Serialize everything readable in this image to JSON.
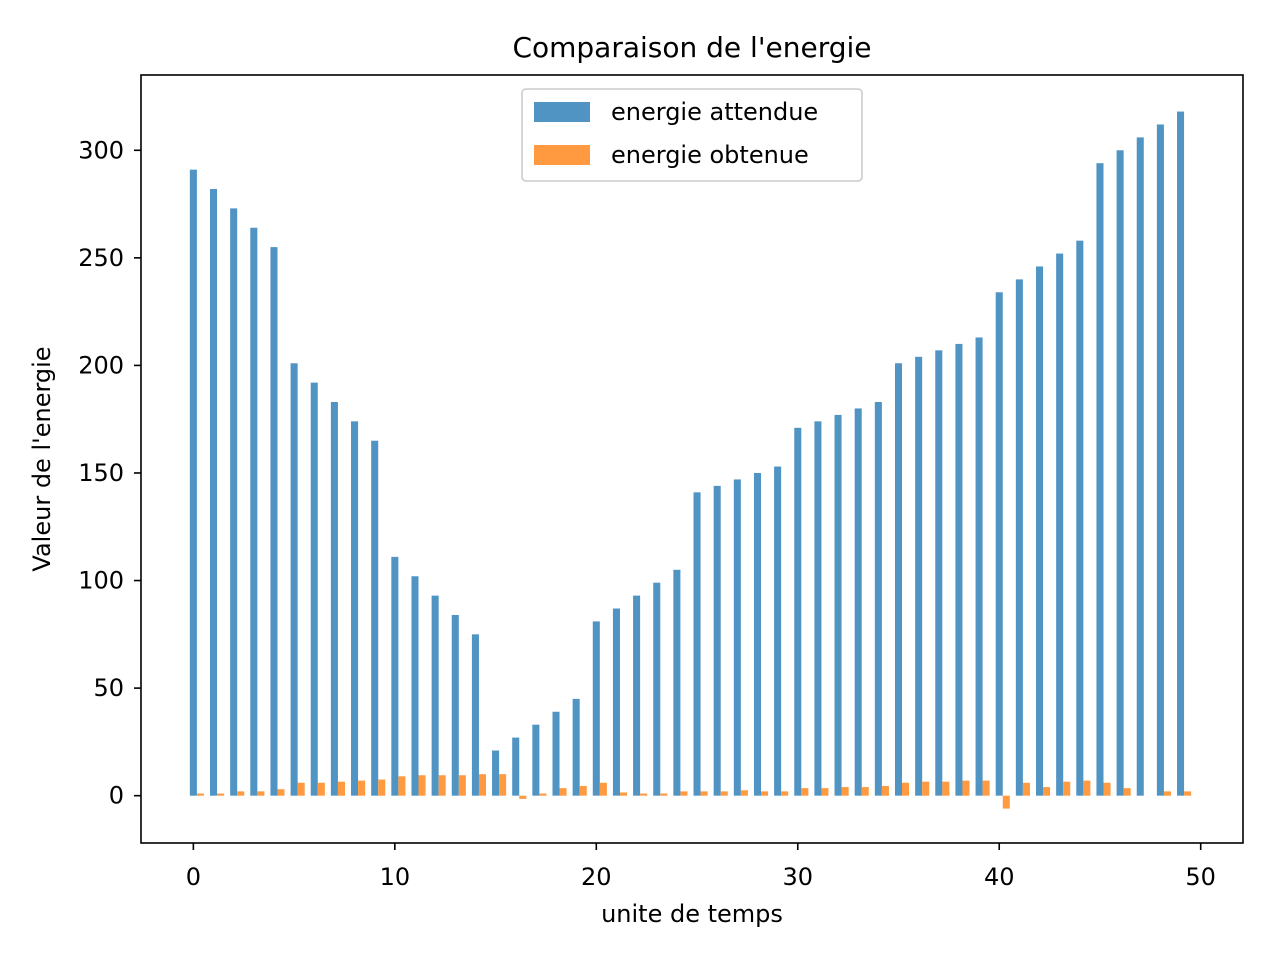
{
  "chart_data": {
    "type": "bar",
    "title": "Comparaison de l'energie",
    "xlabel": "unite de temps",
    "ylabel": "Valeur de l'energie",
    "xlim": [
      -2.6,
      52.1
    ],
    "ylim": [
      -22,
      335
    ],
    "xticks": [
      0,
      10,
      20,
      30,
      40,
      50
    ],
    "yticks": [
      0,
      50,
      100,
      150,
      200,
      250,
      300
    ],
    "grid": false,
    "legend_position": "top-center",
    "bar_width": 0.35,
    "x": [
      0,
      1,
      2,
      3,
      4,
      5,
      6,
      7,
      8,
      9,
      10,
      11,
      12,
      13,
      14,
      15,
      16,
      17,
      18,
      19,
      20,
      21,
      22,
      23,
      24,
      25,
      26,
      27,
      28,
      29,
      30,
      31,
      32,
      33,
      34,
      35,
      36,
      37,
      38,
      39,
      40,
      41,
      42,
      43,
      44,
      45,
      46,
      47,
      48,
      49
    ],
    "series": [
      {
        "name": "energie attendue",
        "color": "#5094c4",
        "offset": 0,
        "values": [
          291,
          282,
          273,
          264,
          255,
          201,
          192,
          183,
          174,
          165,
          111,
          102,
          93,
          84,
          75,
          21,
          27,
          33,
          39,
          45,
          81,
          87,
          93,
          99,
          105,
          141,
          144,
          147,
          150,
          153,
          171,
          174,
          177,
          180,
          183,
          201,
          204,
          207,
          210,
          213,
          234,
          240,
          246,
          252,
          258,
          294,
          300,
          306,
          312,
          318
        ]
      },
      {
        "name": "energie obtenue",
        "color": "#ff9a40",
        "offset": 0.35,
        "values": [
          1,
          1,
          2,
          2,
          3,
          6,
          6,
          6.5,
          7,
          7.5,
          9,
          9.5,
          9.5,
          9.5,
          10,
          10,
          -1.5,
          1,
          3.5,
          4.5,
          6,
          1.5,
          1,
          1,
          2,
          2,
          2,
          2.5,
          2,
          2,
          3.5,
          3.5,
          4,
          4,
          4.5,
          6,
          6.5,
          6.5,
          7,
          7,
          -6,
          6,
          4,
          6.5,
          7,
          6,
          3.5,
          0,
          2,
          2
        ]
      }
    ]
  }
}
